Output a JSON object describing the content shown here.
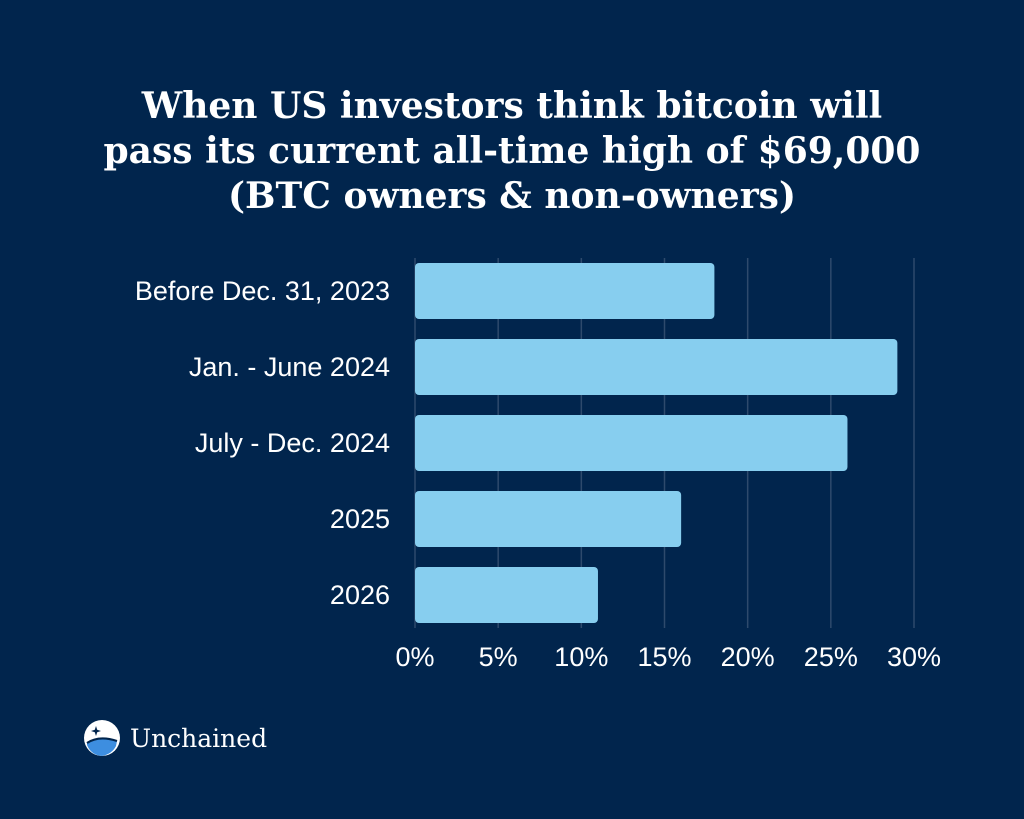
{
  "chart_data": {
    "type": "bar",
    "orientation": "horizontal",
    "title_lines": [
      "When US investors think bitcoin will",
      "pass its current all-time high of $69,000",
      "(BTC owners & non-owners)"
    ],
    "categories": [
      "Before Dec. 31, 2023",
      "Jan. - June 2024",
      "July - Dec. 2024",
      "2025",
      "2026"
    ],
    "values": [
      18,
      29,
      26,
      16,
      11
    ],
    "unit": "%",
    "xlim": [
      0,
      30
    ],
    "xticks": [
      0,
      5,
      10,
      15,
      20,
      25,
      30
    ],
    "xtick_labels": [
      "0%",
      "5%",
      "10%",
      "15%",
      "20%",
      "25%",
      "30%"
    ],
    "grid": true,
    "bar_color": "#87ceef"
  },
  "brand": {
    "name": "Unchained",
    "logo_icon": "unchained-logo-icon"
  },
  "colors": {
    "background": "#01254d",
    "bar": "#87ceef",
    "grid": "#2e4a6c",
    "text": "#ffffff"
  }
}
